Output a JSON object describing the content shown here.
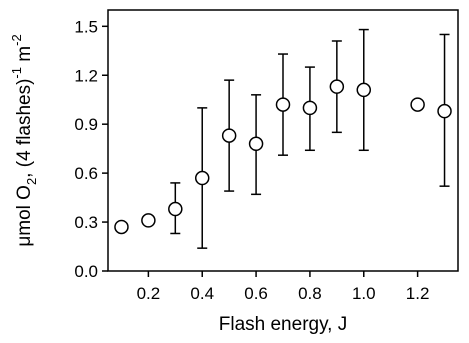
{
  "chart_data": {
    "type": "scatter",
    "xlabel": "Flash energy, J",
    "ylabel": {
      "parts": [
        {
          "text": "μmol O",
          "style": "normal"
        },
        {
          "text": "2",
          "style": "sub"
        },
        {
          "text": ", (4 flashes)",
          "style": "normal"
        },
        {
          "text": "-1",
          "style": "sup"
        },
        {
          "text": " m",
          "style": "normal"
        },
        {
          "text": "-2",
          "style": "sup"
        }
      ]
    },
    "xlim": [
      0.05,
      1.35
    ],
    "ylim": [
      0.0,
      1.6
    ],
    "x_ticks": [
      0.2,
      0.4,
      0.6,
      0.8,
      1.0,
      1.2
    ],
    "x_tick_labels": [
      "0.2",
      "0.4",
      "0.6",
      "0.8",
      "1.0",
      "1.2"
    ],
    "y_ticks": [
      0.0,
      0.3,
      0.6,
      0.9,
      1.2,
      1.5
    ],
    "y_tick_labels": [
      "0.0",
      "0.3",
      "0.6",
      "0.9",
      "1.2",
      "1.5"
    ],
    "grid": false,
    "legend": "none",
    "marker": "open-circle",
    "colors": {
      "marker_edge": "#000000",
      "marker_fill": "#ffffff",
      "axis": "#000000"
    },
    "points": [
      {
        "x": 0.1,
        "y": 0.27,
        "err_low": null,
        "err_high": null
      },
      {
        "x": 0.2,
        "y": 0.31,
        "err_low": null,
        "err_high": null
      },
      {
        "x": 0.3,
        "y": 0.38,
        "err_low": 0.23,
        "err_high": 0.54
      },
      {
        "x": 0.4,
        "y": 0.57,
        "err_low": 0.14,
        "err_high": 1.0
      },
      {
        "x": 0.5,
        "y": 0.83,
        "err_low": 0.49,
        "err_high": 1.17
      },
      {
        "x": 0.6,
        "y": 0.78,
        "err_low": 0.47,
        "err_high": 1.08
      },
      {
        "x": 0.7,
        "y": 1.02,
        "err_low": 0.71,
        "err_high": 1.33
      },
      {
        "x": 0.8,
        "y": 1.0,
        "err_low": 0.74,
        "err_high": 1.25
      },
      {
        "x": 0.9,
        "y": 1.13,
        "err_low": 0.85,
        "err_high": 1.41
      },
      {
        "x": 1.0,
        "y": 1.11,
        "err_low": 0.74,
        "err_high": 1.48
      },
      {
        "x": 1.2,
        "y": 1.02,
        "err_low": null,
        "err_high": null
      },
      {
        "x": 1.3,
        "y": 0.98,
        "err_low": 0.52,
        "err_high": 1.45
      }
    ]
  }
}
